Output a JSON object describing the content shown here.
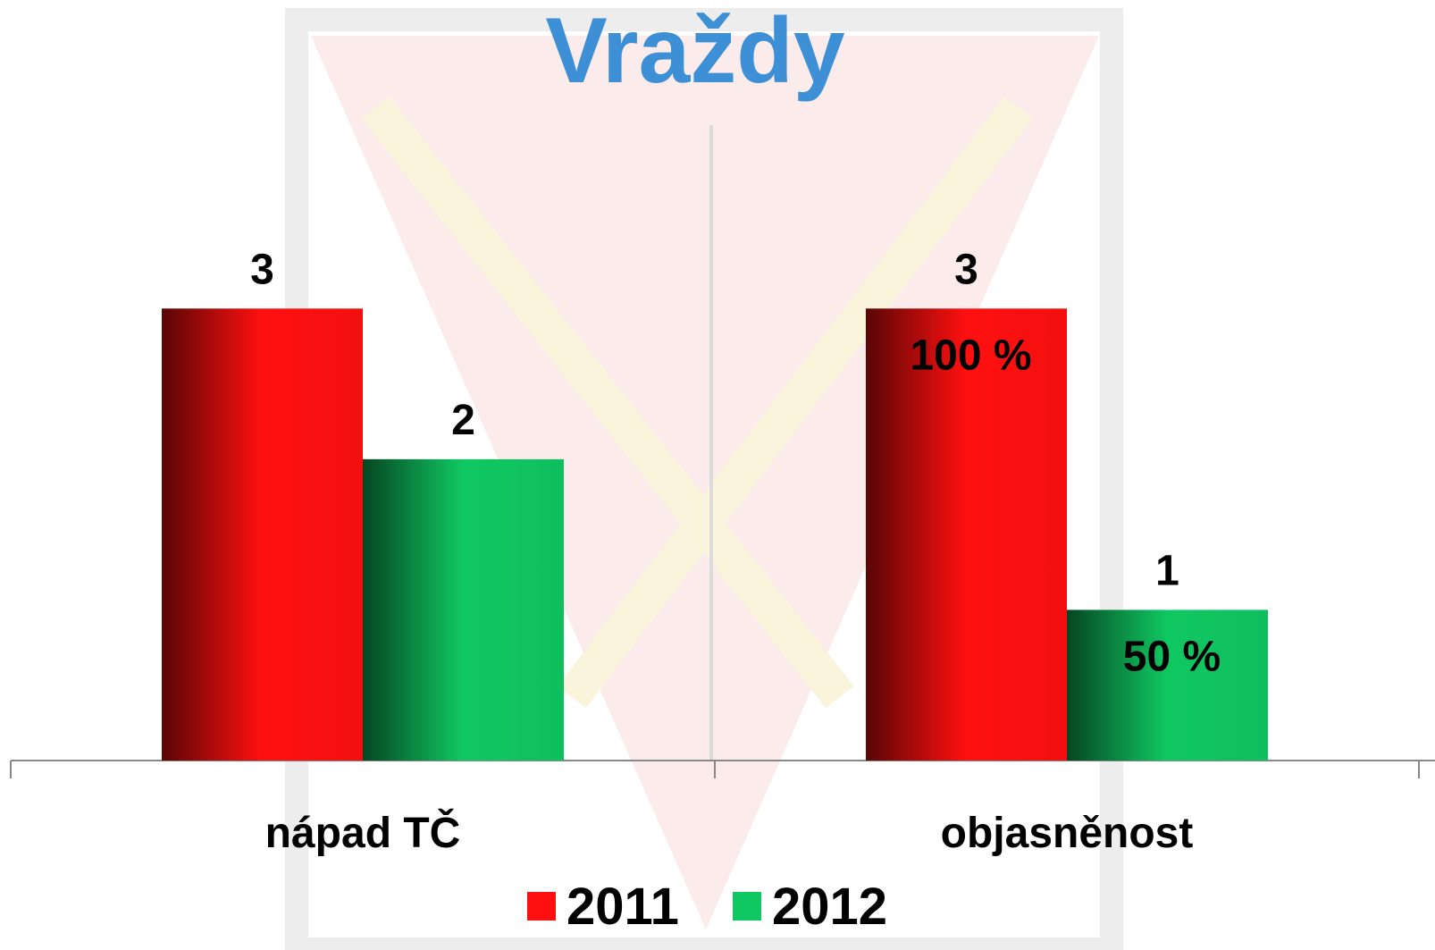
{
  "chart_data": {
    "type": "bar",
    "title": "Vraždy",
    "categories": [
      "nápad TČ",
      "objasněnost"
    ],
    "series": [
      {
        "name": "2011",
        "color": "#ff1010",
        "values": [
          3,
          3
        ],
        "percent_labels": [
          null,
          "100 %"
        ]
      },
      {
        "name": "2012",
        "color": "#10c862",
        "values": [
          2,
          1
        ],
        "percent_labels": [
          null,
          "50 %"
        ]
      }
    ],
    "ylim": [
      0,
      3.5
    ],
    "legend": "bottom"
  }
}
